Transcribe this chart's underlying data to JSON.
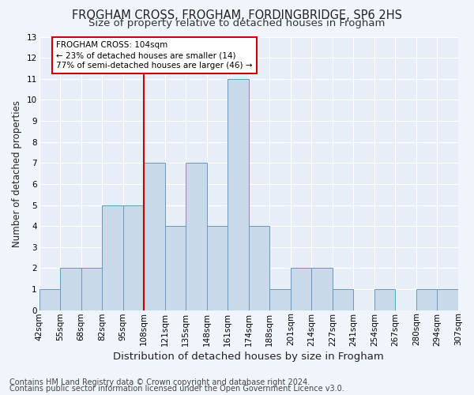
{
  "title1": "FROGHAM CROSS, FROGHAM, FORDINGBRIDGE, SP6 2HS",
  "title2": "Size of property relative to detached houses in Frogham",
  "xlabel": "Distribution of detached houses by size in Frogham",
  "ylabel": "Number of detached properties",
  "bar_values": [
    1,
    2,
    2,
    5,
    5,
    7,
    4,
    7,
    4,
    11,
    4,
    1,
    2,
    2,
    1,
    0,
    1,
    0,
    1,
    1
  ],
  "x_labels": [
    "42sqm",
    "55sqm",
    "68sqm",
    "82sqm",
    "95sqm",
    "108sqm",
    "121sqm",
    "135sqm",
    "148sqm",
    "161sqm",
    "174sqm",
    "188sqm",
    "201sqm",
    "214sqm",
    "227sqm",
    "241sqm",
    "254sqm",
    "267sqm",
    "280sqm",
    "294sqm",
    "307sqm"
  ],
  "bar_color": "#c9d9ea",
  "bar_edge_color": "#6699bb",
  "annotation_text": "FROGHAM CROSS: 104sqm\n← 23% of detached houses are smaller (14)\n77% of semi-detached houses are larger (46) →",
  "annotation_box_color": "#ffffff",
  "annotation_box_edge_color": "#cc0000",
  "vline_color": "#cc0000",
  "ylim": [
    0,
    13
  ],
  "yticks": [
    0,
    1,
    2,
    3,
    4,
    5,
    6,
    7,
    8,
    9,
    10,
    11,
    12,
    13
  ],
  "footer1": "Contains HM Land Registry data © Crown copyright and database right 2024.",
  "footer2": "Contains public sector information licensed under the Open Government Licence v3.0.",
  "fig_bg_color": "#f0f4fb",
  "ax_bg_color": "#e8eef7",
  "grid_color": "#ffffff",
  "title1_fontsize": 10.5,
  "title2_fontsize": 9.5,
  "xlabel_fontsize": 9.5,
  "ylabel_fontsize": 8.5,
  "tick_fontsize": 7.5,
  "annot_fontsize": 7.5,
  "footer_fontsize": 7.0
}
